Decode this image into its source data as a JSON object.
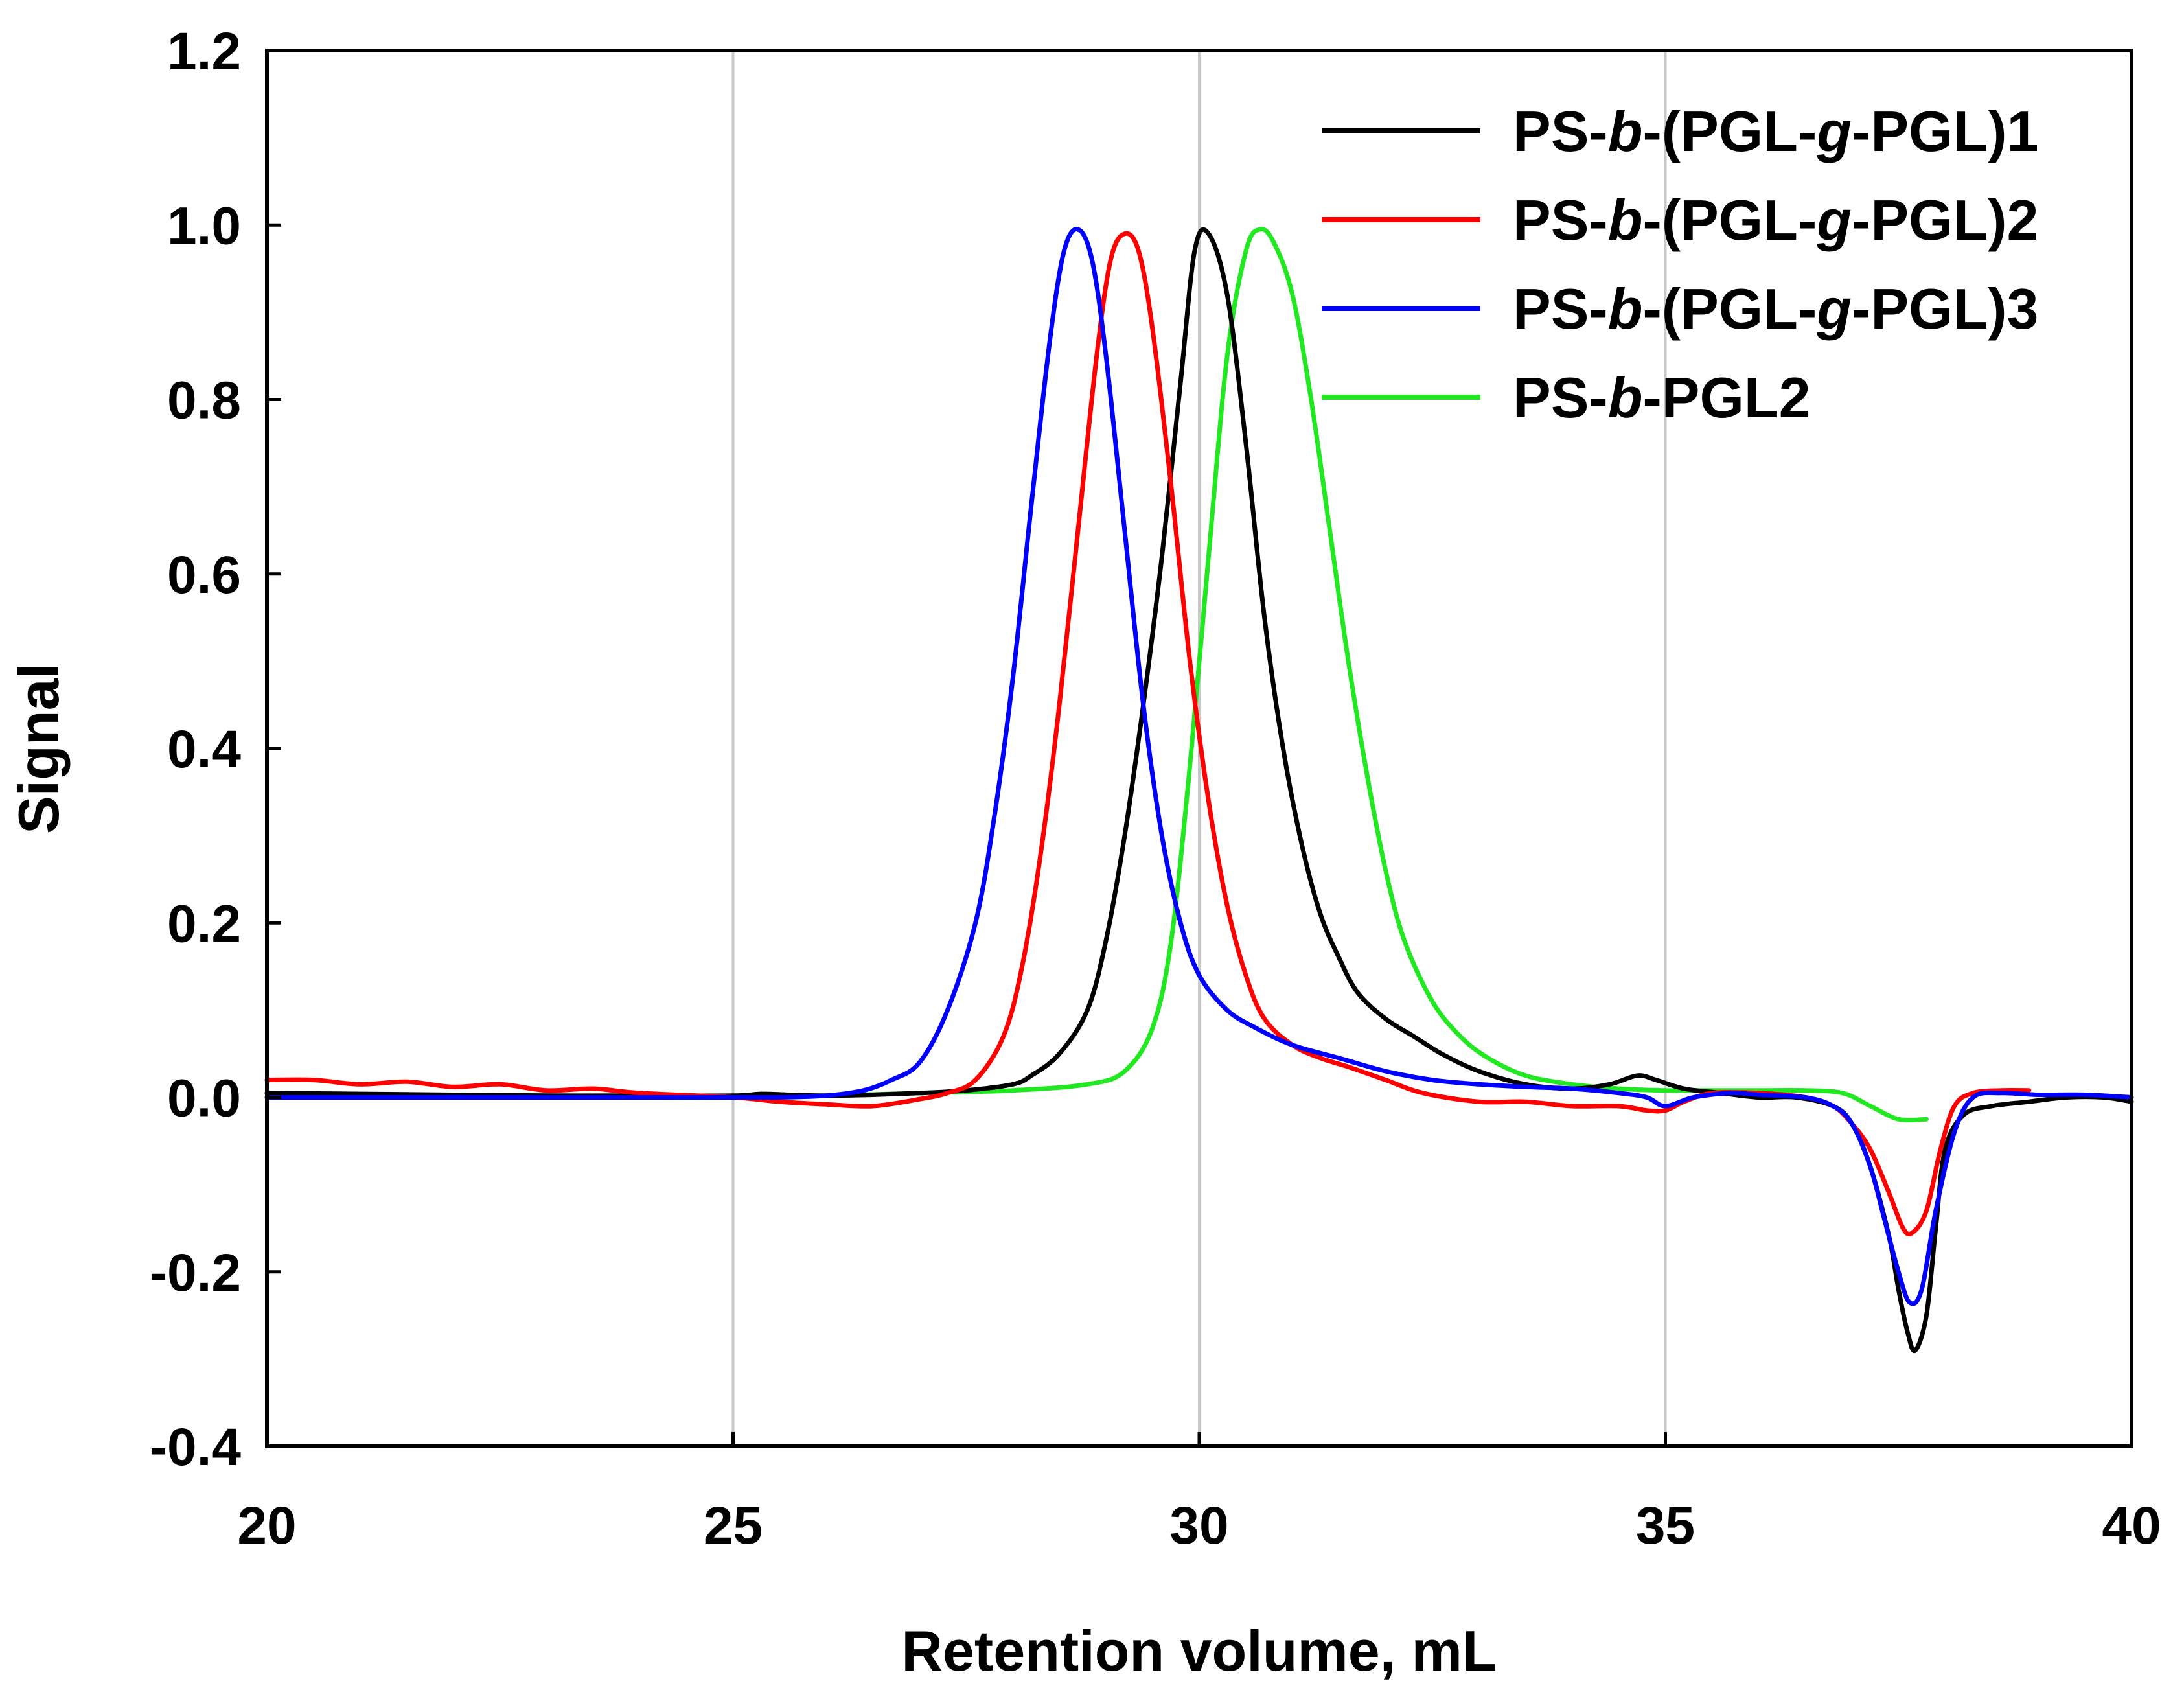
{
  "chart_data": {
    "type": "line",
    "title": "",
    "xlabel": "Retention volume, mL",
    "ylabel": "Signal",
    "xlim": [
      20,
      40
    ],
    "ylim": [
      -0.4,
      1.2
    ],
    "xticks": [
      20,
      25,
      30,
      35,
      40
    ],
    "yticks": [
      -0.4,
      -0.2,
      0.0,
      0.2,
      0.4,
      0.6,
      0.8,
      1.0,
      1.2
    ],
    "xtick_labels": [
      "20",
      "25",
      "30",
      "35",
      "40"
    ],
    "ytick_labels": [
      "-0.4",
      "-0.2",
      "0.0",
      "0.2",
      "0.4",
      "0.6",
      "0.8",
      "1.0",
      "1.2"
    ],
    "vertical_gridlines_at": [
      25,
      30,
      35
    ],
    "legend_position": "top-right",
    "series": [
      {
        "name": "PS-b-(PGL-g-PGL)1",
        "label_parts": [
          [
            "PS-",
            false
          ],
          [
            "b",
            true
          ],
          [
            "-(PGL-",
            false
          ],
          [
            "g",
            true
          ],
          [
            "-PGL)1",
            false
          ]
        ],
        "color": "#000000",
        "x": [
          20,
          21,
          22,
          23,
          24,
          25,
          25.3,
          25.6,
          26,
          26.5,
          27,
          27.5,
          28,
          28.2,
          28.5,
          28.8,
          29,
          29.2,
          29.4,
          29.6,
          29.8,
          29.95,
          30.1,
          30.3,
          30.5,
          30.7,
          30.9,
          31.1,
          31.3,
          31.5,
          31.7,
          32,
          32.3,
          32.6,
          33,
          33.5,
          34,
          34.4,
          34.7,
          34.9,
          35.2,
          35.6,
          36,
          36.4,
          36.8,
          37,
          37.2,
          37.4,
          37.5,
          37.6,
          37.68,
          37.8,
          37.9,
          38,
          38.2,
          38.5,
          38.9,
          39.3,
          39.7,
          40
        ],
        "y": [
          0.005,
          0.004,
          0.003,
          0.002,
          0.002,
          0.002,
          0.004,
          0.003,
          0.002,
          0.003,
          0.005,
          0.008,
          0.015,
          0.025,
          0.05,
          0.1,
          0.18,
          0.3,
          0.45,
          0.62,
          0.82,
          0.97,
          0.99,
          0.92,
          0.75,
          0.55,
          0.4,
          0.29,
          0.21,
          0.16,
          0.12,
          0.09,
          0.07,
          0.05,
          0.03,
          0.015,
          0.01,
          0.015,
          0.025,
          0.02,
          0.01,
          0.005,
          0.0,
          0.0,
          -0.01,
          -0.03,
          -0.08,
          -0.16,
          -0.22,
          -0.27,
          -0.29,
          -0.25,
          -0.15,
          -0.06,
          -0.02,
          -0.01,
          -0.005,
          0.0,
          0.0,
          -0.005
        ]
      },
      {
        "name": "PS-b-(PGL-g-PGL)2",
        "label_parts": [
          [
            "PS-",
            false
          ],
          [
            "b",
            true
          ],
          [
            "-(PGL-",
            false
          ],
          [
            "g",
            true
          ],
          [
            "-PGL)2",
            false
          ]
        ],
        "color": "#ff0000",
        "x": [
          20,
          20.5,
          21,
          21.5,
          22,
          22.5,
          23,
          23.5,
          24,
          25,
          25.5,
          26,
          26.5,
          27,
          27.3,
          27.6,
          27.9,
          28.1,
          28.3,
          28.5,
          28.7,
          28.9,
          29.05,
          29.2,
          29.35,
          29.5,
          29.7,
          29.9,
          30.1,
          30.3,
          30.5,
          30.7,
          31,
          31.3,
          31.6,
          32,
          32.4,
          33,
          33.5,
          34,
          34.5,
          34.8,
          35,
          35.2,
          35.5,
          36,
          36.5,
          36.8,
          37,
          37.2,
          37.4,
          37.55,
          37.65,
          37.8,
          37.95,
          38.1,
          38.3,
          38.6,
          38.9
        ],
        "y": [
          0.02,
          0.02,
          0.015,
          0.018,
          0.012,
          0.015,
          0.008,
          0.01,
          0.005,
          0.0,
          -0.005,
          -0.008,
          -0.01,
          -0.002,
          0.005,
          0.02,
          0.07,
          0.15,
          0.28,
          0.45,
          0.65,
          0.85,
          0.96,
          0.99,
          0.97,
          0.88,
          0.7,
          0.5,
          0.34,
          0.22,
          0.14,
          0.09,
          0.06,
          0.045,
          0.035,
          0.02,
          0.005,
          -0.005,
          -0.005,
          -0.01,
          -0.01,
          -0.015,
          -0.015,
          -0.005,
          0.005,
          0.005,
          0.0,
          -0.01,
          -0.03,
          -0.06,
          -0.11,
          -0.15,
          -0.155,
          -0.13,
          -0.06,
          -0.01,
          0.005,
          0.008,
          0.008
        ]
      },
      {
        "name": "PS-b-(PGL-g-PGL)3",
        "label_parts": [
          [
            "PS-",
            false
          ],
          [
            "b",
            true
          ],
          [
            "-(PGL-",
            false
          ],
          [
            "g",
            true
          ],
          [
            "-PGL)3",
            false
          ]
        ],
        "color": "#0000ff",
        "x": [
          20,
          21,
          22,
          23,
          24,
          25,
          25.5,
          26,
          26.4,
          26.7,
          27,
          27.3,
          27.6,
          27.8,
          28,
          28.2,
          28.4,
          28.55,
          28.7,
          28.85,
          29,
          29.2,
          29.4,
          29.6,
          29.8,
          30,
          30.3,
          30.6,
          31,
          31.5,
          32,
          32.5,
          33,
          33.5,
          34,
          34.5,
          34.8,
          35,
          35.3,
          35.7,
          36,
          36.5,
          36.8,
          37,
          37.2,
          37.35,
          37.5,
          37.62,
          37.75,
          37.9,
          38.1,
          38.3,
          38.6,
          39,
          39.5,
          40
        ],
        "y": [
          0.0,
          0.0,
          0.0,
          0.0,
          0.0,
          0.0,
          0.0,
          0.002,
          0.008,
          0.02,
          0.04,
          0.1,
          0.2,
          0.32,
          0.48,
          0.68,
          0.87,
          0.97,
          0.995,
          0.96,
          0.85,
          0.65,
          0.45,
          0.3,
          0.2,
          0.14,
          0.1,
          0.08,
          0.06,
          0.045,
          0.03,
          0.02,
          0.015,
          0.012,
          0.01,
          0.005,
          0.0,
          -0.01,
          0.0,
          0.005,
          0.003,
          0.0,
          -0.01,
          -0.03,
          -0.08,
          -0.14,
          -0.2,
          -0.235,
          -0.22,
          -0.13,
          -0.04,
          0.0,
          0.005,
          0.003,
          0.003,
          0.0
        ]
      },
      {
        "name": "PS-b-PGL2",
        "label_parts": [
          [
            "PS-",
            false
          ],
          [
            "b",
            true
          ],
          [
            "-PGL2",
            false
          ]
        ],
        "color": "#22e822",
        "x": [
          20,
          21,
          22,
          23,
          24,
          25,
          26,
          27,
          28,
          28.8,
          29.2,
          29.5,
          29.7,
          29.9,
          30.1,
          30.3,
          30.5,
          30.65,
          30.8,
          31,
          31.2,
          31.4,
          31.6,
          31.8,
          32,
          32.2,
          32.5,
          32.8,
          33.1,
          33.5,
          34,
          34.5,
          35,
          35.5,
          36,
          36.5,
          36.9,
          37.2,
          37.5,
          37.8
        ],
        "y": [
          0.0,
          0.0,
          0.0,
          0.0,
          0.0,
          0.0,
          0.002,
          0.005,
          0.008,
          0.015,
          0.03,
          0.08,
          0.18,
          0.38,
          0.62,
          0.85,
          0.97,
          0.995,
          0.98,
          0.92,
          0.8,
          0.65,
          0.5,
          0.37,
          0.26,
          0.18,
          0.11,
          0.07,
          0.045,
          0.025,
          0.015,
          0.01,
          0.008,
          0.008,
          0.008,
          0.008,
          0.005,
          -0.01,
          -0.025,
          -0.025
        ]
      }
    ]
  }
}
